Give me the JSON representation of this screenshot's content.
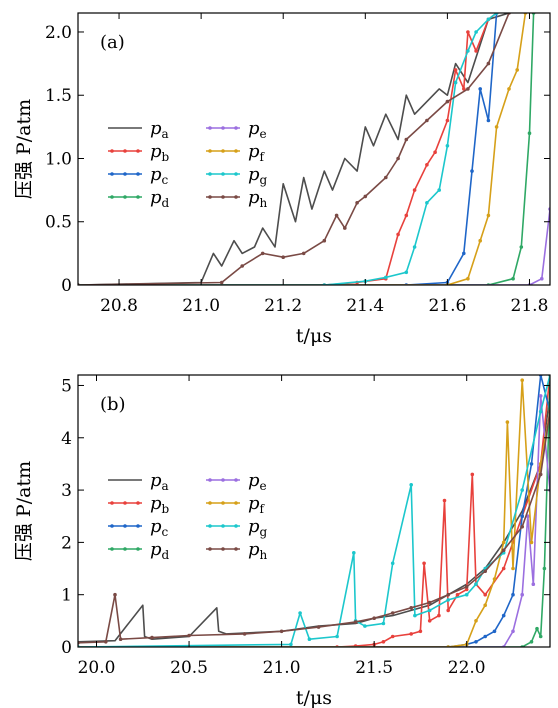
{
  "chart_data": [
    {
      "type": "line",
      "panel_label": "(a)",
      "ylabel": "压强 P/atm",
      "xlabel": "t/μs",
      "xlim": [
        20.7,
        21.85
      ],
      "ylim": [
        0,
        2.15
      ],
      "xticks": [
        "20.8",
        "21.0",
        "21.2",
        "21.4",
        "21.6",
        "21.8"
      ],
      "yticks": [
        "0",
        "0.5",
        "1.0",
        "1.5",
        "2.0"
      ],
      "legend_placement": "center-left",
      "series": [
        {
          "name": "p",
          "sub": "a",
          "color": "#4d4d4d",
          "marker": false,
          "x": [
            20.7,
            21.0,
            21.03,
            21.05,
            21.08,
            21.1,
            21.13,
            21.15,
            21.18,
            21.2,
            21.23,
            21.25,
            21.27,
            21.3,
            21.32,
            21.35,
            21.38,
            21.4,
            21.42,
            21.45,
            21.48,
            21.5,
            21.52,
            21.55,
            21.58,
            21.6,
            21.62,
            21.65,
            21.68,
            21.7,
            21.75
          ],
          "y": [
            0,
            0.02,
            0.25,
            0.15,
            0.35,
            0.25,
            0.3,
            0.45,
            0.3,
            0.8,
            0.5,
            0.85,
            0.6,
            0.9,
            0.75,
            1.0,
            0.9,
            1.25,
            1.1,
            1.35,
            1.15,
            1.5,
            1.35,
            1.45,
            1.55,
            1.5,
            1.75,
            1.6,
            1.9,
            2.1,
            2.15
          ]
        },
        {
          "name": "p",
          "sub": "b",
          "color": "#e8413c",
          "marker": true,
          "x": [
            20.7,
            21.3,
            21.38,
            21.45,
            21.48,
            21.5,
            21.52,
            21.55,
            21.57,
            21.6,
            21.62,
            21.64,
            21.65,
            21.67,
            21.7,
            21.72
          ],
          "y": [
            0,
            0,
            0.02,
            0.05,
            0.4,
            0.55,
            0.75,
            0.95,
            1.05,
            1.3,
            1.7,
            1.55,
            2.0,
            1.85,
            2.1,
            2.15
          ]
        },
        {
          "name": "p",
          "sub": "c",
          "color": "#1f66c8",
          "marker": true,
          "x": [
            20.7,
            21.5,
            21.6,
            21.64,
            21.66,
            21.68,
            21.7,
            21.72
          ],
          "y": [
            0,
            0,
            0.02,
            0.25,
            0.9,
            1.55,
            1.3,
            2.15
          ]
        },
        {
          "name": "p",
          "sub": "d",
          "color": "#2fa865",
          "marker": true,
          "x": [
            20.7,
            21.7,
            21.76,
            21.78,
            21.8,
            21.81
          ],
          "y": [
            0,
            0,
            0.05,
            0.3,
            1.2,
            2.15
          ]
        },
        {
          "name": "p",
          "sub": "e",
          "color": "#9b6fe0",
          "marker": true,
          "x": [
            20.7,
            21.8,
            21.83,
            21.85
          ],
          "y": [
            0,
            0,
            0.05,
            0.6
          ]
        },
        {
          "name": "p",
          "sub": "f",
          "color": "#d6a019",
          "marker": true,
          "x": [
            20.7,
            21.6,
            21.65,
            21.68,
            21.7,
            21.72,
            21.75,
            21.77,
            21.79
          ],
          "y": [
            0,
            0,
            0.05,
            0.35,
            0.55,
            1.25,
            1.55,
            1.7,
            2.15
          ]
        },
        {
          "name": "p",
          "sub": "g",
          "color": "#1cc7cc",
          "marker": true,
          "x": [
            20.7,
            21.3,
            21.4,
            21.45,
            21.5,
            21.52,
            21.55,
            21.58,
            21.6,
            21.62,
            21.65,
            21.67,
            21.7,
            21.72
          ],
          "y": [
            0,
            0,
            0.03,
            0.06,
            0.1,
            0.3,
            0.65,
            0.75,
            1.1,
            1.6,
            1.85,
            2.0,
            2.1,
            2.15
          ]
        },
        {
          "name": "p",
          "sub": "h",
          "color": "#7a4a45",
          "marker": true,
          "x": [
            20.7,
            21.05,
            21.1,
            21.15,
            21.2,
            21.25,
            21.3,
            21.33,
            21.35,
            21.38,
            21.4,
            21.45,
            21.48,
            21.5,
            21.55,
            21.6,
            21.65,
            21.7,
            21.75
          ],
          "y": [
            0,
            0.02,
            0.15,
            0.25,
            0.22,
            0.25,
            0.35,
            0.55,
            0.45,
            0.65,
            0.7,
            0.85,
            1.0,
            1.15,
            1.3,
            1.45,
            1.55,
            1.75,
            2.15
          ]
        }
      ]
    },
    {
      "type": "line",
      "panel_label": "(b)",
      "ylabel": "压强 P/atm",
      "xlabel": "t/μs",
      "xlim": [
        19.9,
        22.45
      ],
      "ylim": [
        0,
        5.2
      ],
      "xticks": [
        "20.0",
        "20.5",
        "21.0",
        "21.5",
        "22.0"
      ],
      "yticks": [
        "0",
        "1",
        "2",
        "3",
        "4",
        "5"
      ],
      "legend_placement": "center-left",
      "series": [
        {
          "name": "p",
          "sub": "a",
          "color": "#4d4d4d",
          "marker": false,
          "x": [
            19.9,
            20.1,
            20.25,
            20.26,
            20.3,
            20.5,
            20.65,
            20.66,
            20.7,
            21.0,
            21.1,
            21.2,
            21.4,
            21.5,
            21.6,
            21.7,
            21.8,
            21.9,
            22.0,
            22.1,
            22.2,
            22.3,
            22.4,
            22.45
          ],
          "y": [
            0.1,
            0.12,
            0.8,
            0.2,
            0.15,
            0.2,
            0.75,
            0.3,
            0.25,
            0.3,
            0.35,
            0.4,
            0.45,
            0.55,
            0.6,
            0.7,
            0.8,
            1.0,
            1.2,
            1.5,
            2.0,
            2.6,
            3.5,
            4.8
          ]
        },
        {
          "name": "p",
          "sub": "b",
          "color": "#e8413c",
          "marker": true,
          "x": [
            19.9,
            21.3,
            21.4,
            21.5,
            21.55,
            21.6,
            21.7,
            21.75,
            21.77,
            21.8,
            21.85,
            21.88,
            21.9,
            21.95,
            22.0,
            22.03,
            22.05,
            22.1,
            22.2,
            22.3,
            22.4,
            22.45
          ],
          "y": [
            0,
            0,
            0.02,
            0.05,
            0.1,
            0.2,
            0.25,
            0.3,
            1.6,
            0.5,
            0.6,
            2.8,
            0.7,
            1.0,
            1.1,
            3.3,
            1.2,
            1.0,
            1.5,
            2.5,
            3.5,
            5.2
          ]
        },
        {
          "name": "p",
          "sub": "c",
          "color": "#1f66c8",
          "marker": true,
          "x": [
            19.9,
            21.9,
            22.0,
            22.05,
            22.1,
            22.15,
            22.2,
            22.25,
            22.3,
            22.35,
            22.4,
            22.45
          ],
          "y": [
            0,
            0,
            0.05,
            0.1,
            0.2,
            0.3,
            0.6,
            1.0,
            2.5,
            3.5,
            5.2,
            4.5
          ]
        },
        {
          "name": "p",
          "sub": "d",
          "color": "#2fa865",
          "marker": true,
          "x": [
            19.9,
            22.3,
            22.35,
            22.38,
            22.4,
            22.42,
            22.45
          ],
          "y": [
            0,
            0,
            0.1,
            0.35,
            0.2,
            1.5,
            5.0
          ]
        },
        {
          "name": "p",
          "sub": "e",
          "color": "#9b6fe0",
          "marker": true,
          "x": [
            19.9,
            22.2,
            22.25,
            22.3,
            22.33,
            22.36,
            22.4,
            22.45
          ],
          "y": [
            0,
            0,
            0.3,
            1.0,
            2.5,
            1.2,
            4.8,
            3.0
          ]
        },
        {
          "name": "p",
          "sub": "f",
          "color": "#d6a019",
          "marker": true,
          "x": [
            19.9,
            21.9,
            22.0,
            22.05,
            22.1,
            22.15,
            22.2,
            22.22,
            22.25,
            22.3,
            22.35,
            22.4,
            22.45
          ],
          "y": [
            0,
            0,
            0.05,
            0.5,
            0.8,
            1.3,
            2.0,
            4.3,
            1.5,
            5.1,
            2.0,
            3.5,
            4.5
          ]
        },
        {
          "name": "p",
          "sub": "g",
          "color": "#1cc7cc",
          "marker": true,
          "x": [
            19.9,
            21.05,
            21.1,
            21.15,
            21.3,
            21.39,
            21.4,
            21.45,
            21.55,
            21.6,
            21.7,
            21.72,
            21.8,
            21.9,
            22.0,
            22.05,
            22.1,
            22.2,
            22.3,
            22.4,
            22.45
          ],
          "y": [
            0,
            0.05,
            0.65,
            0.15,
            0.2,
            1.8,
            0.5,
            0.4,
            0.45,
            1.6,
            3.1,
            0.6,
            0.7,
            0.9,
            1.0,
            1.2,
            1.5,
            1.8,
            3.0,
            4.5,
            5.2
          ]
        },
        {
          "name": "p",
          "sub": "h",
          "color": "#7a4a45",
          "marker": true,
          "x": [
            19.9,
            20.05,
            20.1,
            20.13,
            20.3,
            20.5,
            20.8,
            21.0,
            21.2,
            21.4,
            21.5,
            21.6,
            21.7,
            21.8,
            21.9,
            22.0,
            22.1,
            22.2,
            22.3,
            22.4,
            22.45
          ],
          "y": [
            0.08,
            0.1,
            1.0,
            0.15,
            0.18,
            0.22,
            0.25,
            0.3,
            0.38,
            0.48,
            0.55,
            0.65,
            0.75,
            0.85,
            1.0,
            1.15,
            1.45,
            1.85,
            2.3,
            3.3,
            4.5
          ]
        }
      ]
    }
  ]
}
